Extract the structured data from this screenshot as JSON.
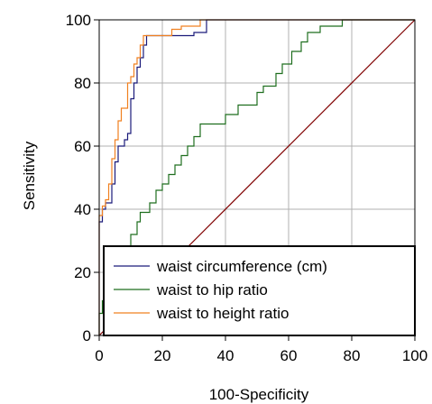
{
  "chart_data": {
    "type": "line",
    "title": "",
    "xlabel": "100-Specificity",
    "ylabel": "Sensitivity",
    "xlim": [
      0,
      100
    ],
    "ylim": [
      0,
      100
    ],
    "xticks": [
      0,
      20,
      40,
      60,
      80,
      100
    ],
    "yticks": [
      0,
      20,
      40,
      60,
      80,
      100
    ],
    "grid": true,
    "legend_position": "bottom-right",
    "series": [
      {
        "name": "waist circumference (cm)",
        "color": "#1a1a7a",
        "points": [
          [
            0,
            0
          ],
          [
            0,
            36
          ],
          [
            1,
            36
          ],
          [
            1,
            40
          ],
          [
            2,
            40
          ],
          [
            2,
            42
          ],
          [
            4,
            42
          ],
          [
            4,
            48
          ],
          [
            5,
            48
          ],
          [
            5,
            55
          ],
          [
            6,
            55
          ],
          [
            6,
            60
          ],
          [
            8,
            60
          ],
          [
            8,
            62
          ],
          [
            9,
            62
          ],
          [
            9,
            64
          ],
          [
            10,
            64
          ],
          [
            10,
            75
          ],
          [
            11,
            75
          ],
          [
            11,
            80
          ],
          [
            12,
            80
          ],
          [
            12,
            85
          ],
          [
            13,
            85
          ],
          [
            13,
            88
          ],
          [
            14,
            88
          ],
          [
            14,
            92
          ],
          [
            15,
            92
          ],
          [
            15,
            95
          ],
          [
            30,
            95
          ],
          [
            30,
            96
          ],
          [
            34,
            96
          ],
          [
            34,
            100
          ],
          [
            100,
            100
          ]
        ]
      },
      {
        "name": "waist to hip ratio",
        "color": "#1e6e1e",
        "points": [
          [
            0,
            0
          ],
          [
            0,
            7
          ],
          [
            1,
            7
          ],
          [
            1,
            11
          ],
          [
            3,
            11
          ],
          [
            3,
            18
          ],
          [
            6,
            18
          ],
          [
            6,
            22
          ],
          [
            8,
            22
          ],
          [
            8,
            28
          ],
          [
            10,
            28
          ],
          [
            10,
            32
          ],
          [
            12,
            32
          ],
          [
            12,
            36
          ],
          [
            13,
            36
          ],
          [
            13,
            39
          ],
          [
            16,
            39
          ],
          [
            16,
            42
          ],
          [
            18,
            42
          ],
          [
            18,
            46
          ],
          [
            20,
            46
          ],
          [
            20,
            48
          ],
          [
            22,
            48
          ],
          [
            22,
            51
          ],
          [
            24,
            51
          ],
          [
            24,
            54
          ],
          [
            26,
            54
          ],
          [
            26,
            57
          ],
          [
            28,
            57
          ],
          [
            28,
            60
          ],
          [
            30,
            60
          ],
          [
            30,
            63
          ],
          [
            32,
            63
          ],
          [
            32,
            67
          ],
          [
            40,
            67
          ],
          [
            40,
            70
          ],
          [
            44,
            70
          ],
          [
            44,
            73
          ],
          [
            50,
            73
          ],
          [
            50,
            77
          ],
          [
            52,
            77
          ],
          [
            52,
            79
          ],
          [
            56,
            79
          ],
          [
            56,
            83
          ],
          [
            58,
            83
          ],
          [
            58,
            86
          ],
          [
            61,
            86
          ],
          [
            61,
            90
          ],
          [
            64,
            90
          ],
          [
            64,
            93
          ],
          [
            66,
            93
          ],
          [
            66,
            96
          ],
          [
            70,
            96
          ],
          [
            70,
            98
          ],
          [
            77,
            98
          ],
          [
            77,
            100
          ],
          [
            100,
            100
          ]
        ]
      },
      {
        "name": "waist to height ratio",
        "color": "#f08020",
        "points": [
          [
            0,
            0
          ],
          [
            0,
            38
          ],
          [
            1,
            38
          ],
          [
            1,
            41
          ],
          [
            2,
            41
          ],
          [
            2,
            43
          ],
          [
            3,
            43
          ],
          [
            3,
            48
          ],
          [
            4,
            48
          ],
          [
            4,
            56
          ],
          [
            5,
            56
          ],
          [
            5,
            62
          ],
          [
            6,
            62
          ],
          [
            6,
            68
          ],
          [
            7,
            68
          ],
          [
            7,
            72
          ],
          [
            9,
            72
          ],
          [
            9,
            80
          ],
          [
            10,
            80
          ],
          [
            10,
            82
          ],
          [
            11,
            82
          ],
          [
            11,
            86
          ],
          [
            12,
            86
          ],
          [
            12,
            88
          ],
          [
            13,
            88
          ],
          [
            13,
            92
          ],
          [
            14,
            92
          ],
          [
            14,
            95
          ],
          [
            23,
            95
          ],
          [
            23,
            97
          ],
          [
            26,
            97
          ],
          [
            26,
            98
          ],
          [
            32,
            98
          ],
          [
            32,
            100
          ],
          [
            100,
            100
          ]
        ]
      },
      {
        "name": "",
        "color": "#800000",
        "points": [
          [
            0,
            0
          ],
          [
            100,
            100
          ]
        ]
      }
    ]
  }
}
